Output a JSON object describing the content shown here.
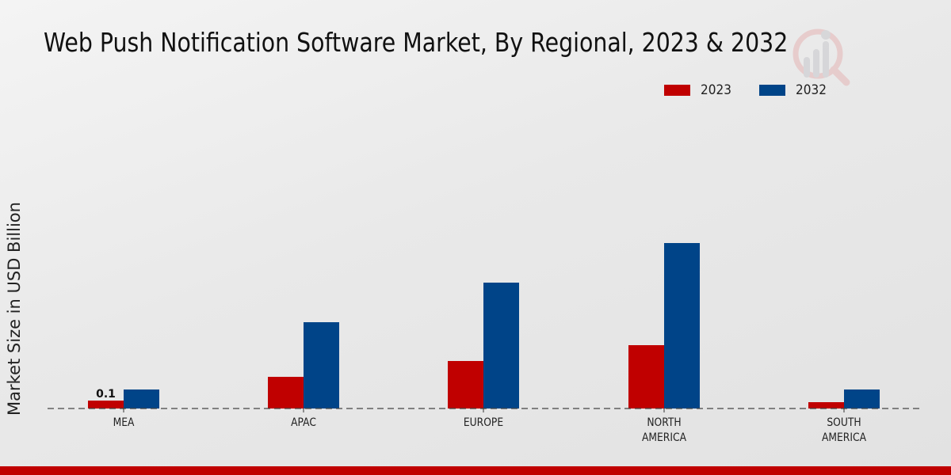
{
  "chart_data": {
    "type": "bar",
    "title": "Web Push Notification Software Market, By Regional, 2023 & 2032",
    "xlabel": "",
    "ylabel": "Market Size in USD Billion",
    "categories": [
      "MEA",
      "APAC",
      "EUROPE",
      "NORTH AMERICA",
      "SOUTH AMERICA"
    ],
    "category_lines": [
      [
        "MEA"
      ],
      [
        "APAC"
      ],
      [
        "EUROPE"
      ],
      [
        "NORTH",
        "AMERICA"
      ],
      [
        "SOUTH",
        "AMERICA"
      ]
    ],
    "series": [
      {
        "name": "2023",
        "color": "#c00000",
        "values": [
          0.1,
          0.4,
          0.6,
          0.8,
          0.08
        ]
      },
      {
        "name": "2032",
        "color": "#004488",
        "values": [
          0.24,
          1.09,
          1.59,
          2.09,
          0.24
        ]
      }
    ],
    "data_labels": [
      {
        "series": "2023",
        "category": "MEA",
        "text": "0.1"
      }
    ],
    "ylim": [
      0,
      2.1
    ],
    "grid": false,
    "y_ticks_visible": false,
    "baseline_style": "dashed",
    "legend_position": "top-right"
  },
  "colors": {
    "accent_bar": "#c00000"
  }
}
